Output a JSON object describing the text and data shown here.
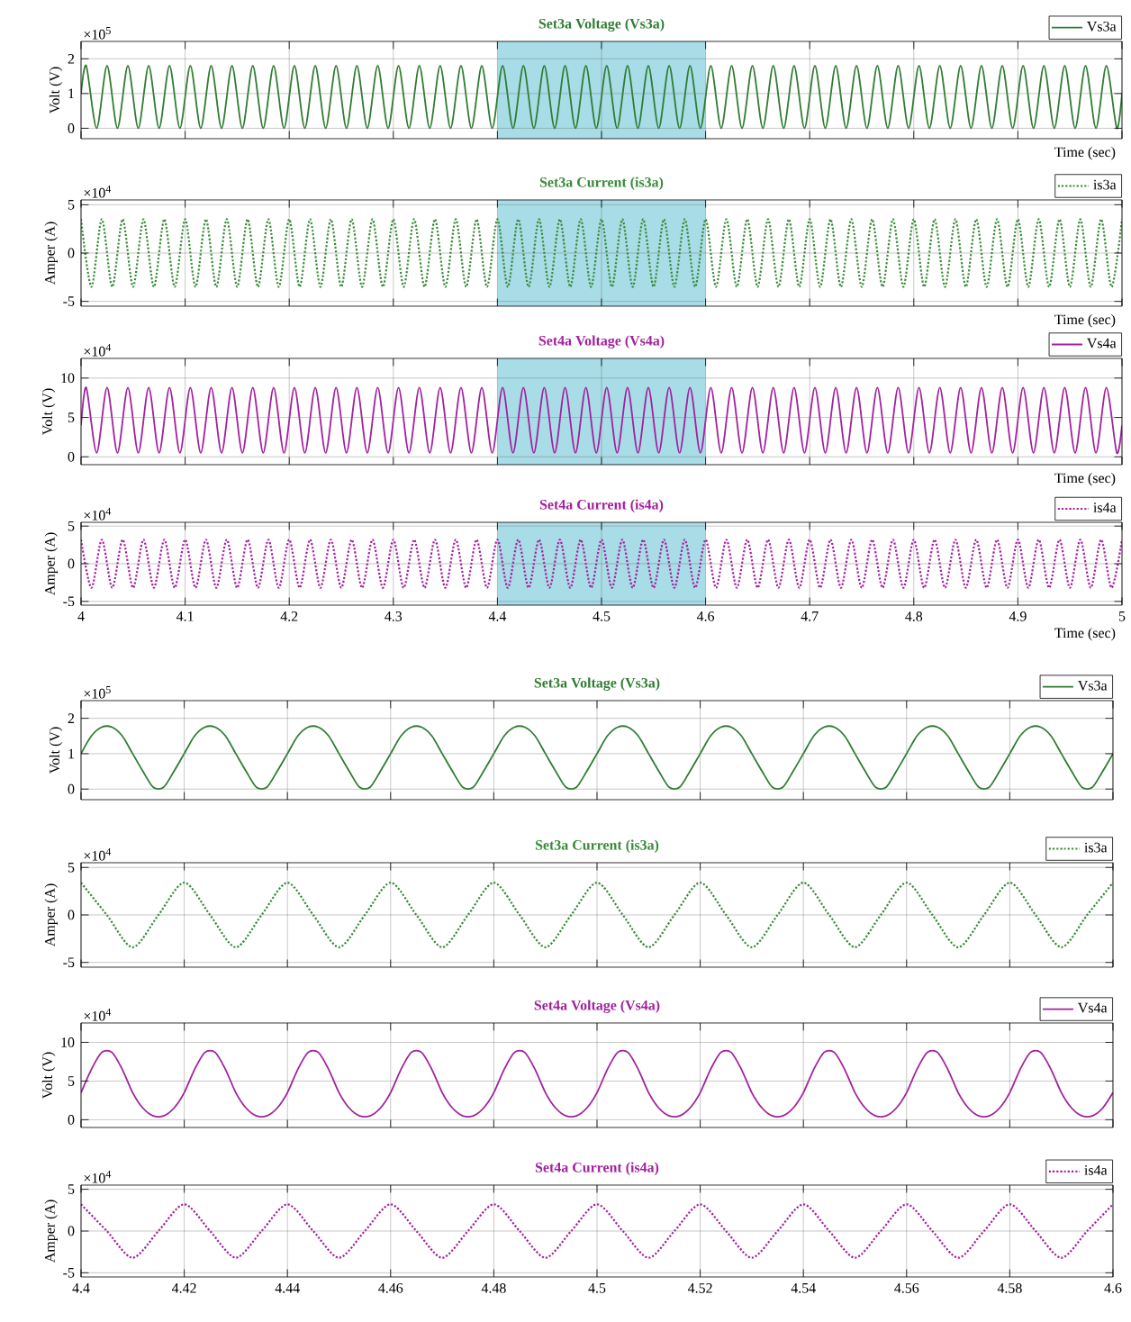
{
  "chart_data": [
    {
      "type": "line",
      "title": "Set3a Voltage (Vs3a)",
      "xlabel": "Time (sec)",
      "ylabel": "Volt (V)",
      "annotations": [
        "×10$^{5}$"
      ],
      "xlim": [
        4,
        5
      ],
      "ylim": [
        -0.3,
        2.5
      ],
      "xticks": [
        4,
        4.1,
        4.2,
        4.3,
        4.4,
        4.5,
        4.6,
        4.7,
        4.8,
        4.9,
        5
      ],
      "yticks": [
        0,
        1,
        2
      ],
      "grid": true,
      "legend": "top right",
      "line_style": "solid",
      "tick_labels": "y",
      "bands": [
        {
          "axis": "x",
          "from": 4.4,
          "to": 4.6,
          "color": "#a8dce6"
        }
      ],
      "x": [
        4,
        4.005,
        4.015,
        4.025,
        4.035,
        4.045,
        4.055,
        4.065,
        4.075,
        4.085,
        4.095,
        4.105,
        4.115,
        4.125,
        4.135,
        4.145,
        4.155,
        4.165,
        4.175,
        4.185,
        4.195,
        4.205,
        4.215,
        4.225,
        4.235,
        4.245,
        4.255,
        4.265,
        4.275,
        4.285,
        4.295,
        4.305,
        4.315,
        4.325,
        4.335,
        4.345,
        4.355,
        4.365,
        4.375,
        4.385,
        4.395,
        4.405,
        4.415,
        4.425,
        4.435,
        4.445,
        4.455,
        4.465,
        4.475,
        4.485,
        4.495,
        4.505,
        4.515,
        4.525,
        4.535,
        4.545,
        4.555,
        4.565,
        4.575,
        4.585,
        4.595,
        4.605,
        4.615,
        4.625,
        4.635,
        4.645,
        4.655,
        4.665,
        4.675,
        4.685,
        4.695,
        4.705,
        4.715,
        4.725,
        4.735,
        4.745,
        4.755,
        4.765,
        4.775,
        4.785,
        4.795,
        4.805,
        4.815,
        4.825,
        4.835,
        4.845,
        4.855,
        4.865,
        4.875,
        4.885,
        4.895,
        4.905,
        4.915,
        4.925,
        4.935,
        4.945,
        4.955,
        4.965,
        4.975,
        4.985,
        4.995,
        5
      ],
      "series": [
        {
          "name": "Vs3a",
          "color": "#2f7d32",
          "values": [
            1,
            1.8,
            0,
            1.8,
            0,
            1.8,
            0,
            1.8,
            0,
            1.8,
            0,
            1.8,
            0,
            1.8,
            0,
            1.8,
            0,
            1.8,
            0,
            1.8,
            0,
            1.8,
            0,
            1.8,
            0,
            1.8,
            0,
            1.8,
            0,
            1.8,
            0,
            1.8,
            0,
            1.8,
            0,
            1.8,
            0,
            1.8,
            0,
            1.8,
            0,
            1.8,
            0,
            1.8,
            0,
            1.8,
            0,
            1.8,
            0,
            1.8,
            0,
            1.8,
            0,
            1.8,
            0,
            1.8,
            0,
            1.8,
            0,
            1.8,
            0,
            1.8,
            0,
            1.8,
            0,
            1.8,
            0,
            1.8,
            0,
            1.8,
            0,
            1.8,
            0,
            1.8,
            0,
            1.8,
            0,
            1.8,
            0,
            1.8,
            0,
            1.8,
            0,
            1.8,
            0,
            1.8,
            0,
            1.8,
            0,
            1.8,
            0,
            1.8,
            0,
            1.8,
            0,
            1.8,
            0,
            1.8,
            0,
            1.8,
            0,
            1
          ]
        }
      ]
    },
    {
      "type": "line",
      "title": "Set3a Current (is3a)",
      "xlabel": "Time (sec)",
      "ylabel": "Amper (A)",
      "annotations": [
        "×10$^{4}$"
      ],
      "xlim": [
        4,
        5
      ],
      "ylim": [
        -5.5,
        5.5
      ],
      "xticks": [
        4,
        4.1,
        4.2,
        4.3,
        4.4,
        4.5,
        4.6,
        4.7,
        4.8,
        4.9,
        5
      ],
      "yticks": [
        -5,
        0,
        5
      ],
      "grid": true,
      "legend": "top right",
      "line_style": "dotted",
      "tick_labels": "y",
      "bands": [
        {
          "axis": "x",
          "from": 4.4,
          "to": 4.6,
          "color": "#a8dce6"
        }
      ],
      "x": [
        4,
        4.01,
        4.02,
        4.03,
        4.04,
        4.05,
        4.06,
        4.07,
        4.08,
        4.09,
        4.1,
        4.11,
        4.12,
        4.13,
        4.14,
        4.15,
        4.16,
        4.17,
        4.18,
        4.19,
        4.2,
        4.21,
        4.22,
        4.23,
        4.24,
        4.25,
        4.26,
        4.27,
        4.28,
        4.29,
        4.3,
        4.31,
        4.32,
        4.33,
        4.34,
        4.35,
        4.36,
        4.37,
        4.38,
        4.39,
        4.4,
        4.41,
        4.42,
        4.43,
        4.44,
        4.45,
        4.46,
        4.47,
        4.48,
        4.49,
        4.5,
        4.51,
        4.52,
        4.53,
        4.54,
        4.55,
        4.56,
        4.57,
        4.58,
        4.59,
        4.6,
        4.61,
        4.62,
        4.63,
        4.64,
        4.65,
        4.66,
        4.67,
        4.68,
        4.69,
        4.7,
        4.71,
        4.72,
        4.73,
        4.74,
        4.75,
        4.76,
        4.77,
        4.78,
        4.79,
        4.8,
        4.81,
        4.82,
        4.83,
        4.84,
        4.85,
        4.86,
        4.87,
        4.88,
        4.89,
        4.9,
        4.91,
        4.92,
        4.93,
        4.94,
        4.95,
        4.96,
        4.97,
        4.98,
        4.99,
        5
      ],
      "series": [
        {
          "name": "is3a",
          "color": "#3a8a3a",
          "values": [
            3.5,
            -3.5,
            3.5,
            -3.5,
            3.5,
            -3.5,
            3.5,
            -3.5,
            3.5,
            -3.5,
            3.5,
            -3.5,
            3.5,
            -3.5,
            3.5,
            -3.5,
            3.5,
            -3.5,
            3.5,
            -3.5,
            3.5,
            -3.5,
            3.5,
            -3.5,
            3.5,
            -3.5,
            3.5,
            -3.5,
            3.5,
            -3.5,
            3.5,
            -3.5,
            3.5,
            -3.5,
            3.5,
            -3.5,
            3.5,
            -3.5,
            3.5,
            -3.5,
            3.5,
            -3.5,
            3.5,
            -3.5,
            3.5,
            -3.5,
            3.5,
            -3.5,
            3.5,
            -3.5,
            3.5,
            -3.5,
            3.5,
            -3.5,
            3.5,
            -3.5,
            3.5,
            -3.5,
            3.5,
            -3.5,
            3.5,
            -3.5,
            3.5,
            -3.5,
            3.5,
            -3.5,
            3.5,
            -3.5,
            3.5,
            -3.5,
            3.5,
            -3.5,
            3.5,
            -3.5,
            3.5,
            -3.5,
            3.5,
            -3.5,
            3.5,
            -3.5,
            3.5,
            -3.5,
            3.5,
            -3.5,
            3.5,
            -3.5,
            3.5,
            -3.5,
            3.5,
            -3.5,
            3.5,
            -3.5,
            3.5,
            -3.5,
            3.5,
            -3.5,
            3.5,
            -3.5,
            3.5,
            -3.5,
            3.5
          ]
        }
      ]
    },
    {
      "type": "line",
      "title": "Set4a Voltage (Vs4a)",
      "xlabel": "Time (sec)",
      "ylabel": "Volt (V)",
      "annotations": [
        "×10$^{4}$"
      ],
      "xlim": [
        4,
        5
      ],
      "ylim": [
        -1,
        12.5
      ],
      "xticks": [
        4,
        4.1,
        4.2,
        4.3,
        4.4,
        4.5,
        4.6,
        4.7,
        4.8,
        4.9,
        5
      ],
      "yticks": [
        0,
        5,
        10
      ],
      "grid": true,
      "legend": "top right",
      "line_style": "solid",
      "tick_labels": "y",
      "bands": [
        {
          "axis": "x",
          "from": 4.4,
          "to": 4.6,
          "color": "#a8dce6"
        }
      ],
      "x": [
        4,
        4.005,
        4.015,
        4.025,
        4.035,
        4.045,
        4.055,
        4.065,
        4.075,
        4.085,
        4.095,
        4.105,
        4.115,
        4.125,
        4.135,
        4.145,
        4.155,
        4.165,
        4.175,
        4.185,
        4.195,
        4.205,
        4.215,
        4.225,
        4.235,
        4.245,
        4.255,
        4.265,
        4.275,
        4.285,
        4.295,
        4.305,
        4.315,
        4.325,
        4.335,
        4.345,
        4.355,
        4.365,
        4.375,
        4.385,
        4.395,
        4.405,
        4.415,
        4.425,
        4.435,
        4.445,
        4.455,
        4.465,
        4.475,
        4.485,
        4.495,
        4.505,
        4.515,
        4.525,
        4.535,
        4.545,
        4.555,
        4.565,
        4.575,
        4.585,
        4.595,
        4.605,
        4.615,
        4.625,
        4.635,
        4.645,
        4.655,
        4.665,
        4.675,
        4.685,
        4.695,
        4.705,
        4.715,
        4.725,
        4.735,
        4.745,
        4.755,
        4.765,
        4.775,
        4.785,
        4.795,
        4.805,
        4.815,
        4.825,
        4.835,
        4.845,
        4.855,
        4.865,
        4.875,
        4.885,
        4.895,
        4.905,
        4.915,
        4.925,
        4.935,
        4.945,
        4.955,
        4.965,
        4.975,
        4.985,
        4.995,
        5
      ],
      "series": [
        {
          "name": "Vs4a",
          "color": "#a2219f",
          "values": [
            4,
            8.8,
            0.5,
            8.8,
            0.5,
            8.8,
            0.5,
            8.8,
            0.5,
            8.8,
            0.5,
            8.8,
            0.5,
            8.8,
            0.5,
            8.8,
            0.5,
            8.8,
            0.5,
            8.8,
            0.5,
            8.8,
            0.5,
            8.8,
            0.5,
            8.8,
            0.5,
            8.8,
            0.5,
            8.8,
            0.5,
            8.8,
            0.5,
            8.8,
            0.5,
            8.8,
            0.5,
            8.8,
            0.5,
            8.8,
            0.5,
            8.8,
            0.5,
            8.8,
            0.5,
            8.8,
            0.5,
            8.8,
            0.5,
            8.8,
            0.5,
            8.8,
            0.5,
            8.8,
            0.5,
            8.8,
            0.5,
            8.8,
            0.5,
            8.8,
            0.5,
            8.8,
            0.5,
            8.8,
            0.5,
            8.8,
            0.5,
            8.8,
            0.5,
            8.8,
            0.5,
            8.8,
            0.5,
            8.8,
            0.5,
            8.8,
            0.5,
            8.8,
            0.5,
            8.8,
            0.5,
            8.8,
            0.5,
            8.8,
            0.5,
            8.8,
            0.5,
            8.8,
            0.5,
            8.8,
            0.5,
            8.8,
            0.5,
            8.8,
            0.5,
            8.8,
            0.5,
            8.8,
            0.5,
            8.8,
            0.5,
            4
          ]
        }
      ]
    },
    {
      "type": "line",
      "title": "Set4a Current (is4a)",
      "xlabel": "Time (sec)",
      "ylabel": "Amper (A)",
      "annotations": [
        "×10$^{4}$"
      ],
      "xlim": [
        4,
        5
      ],
      "ylim": [
        -5.5,
        5.5
      ],
      "xticks": [
        4,
        4.1,
        4.2,
        4.3,
        4.4,
        4.5,
        4.6,
        4.7,
        4.8,
        4.9,
        5
      ],
      "yticks": [
        -5,
        0,
        5
      ],
      "grid": true,
      "legend": "top right",
      "line_style": "dotted",
      "bands": [
        {
          "axis": "x",
          "from": 4.4,
          "to": 4.6,
          "color": "#a8dce6"
        }
      ],
      "x": [
        4,
        4.01,
        4.02,
        4.03,
        4.04,
        4.05,
        4.06,
        4.07,
        4.08,
        4.09,
        4.1,
        4.11,
        4.12,
        4.13,
        4.14,
        4.15,
        4.16,
        4.17,
        4.18,
        4.19,
        4.2,
        4.21,
        4.22,
        4.23,
        4.24,
        4.25,
        4.26,
        4.27,
        4.28,
        4.29,
        4.3,
        4.31,
        4.32,
        4.33,
        4.34,
        4.35,
        4.36,
        4.37,
        4.38,
        4.39,
        4.4,
        4.41,
        4.42,
        4.43,
        4.44,
        4.45,
        4.46,
        4.47,
        4.48,
        4.49,
        4.5,
        4.51,
        4.52,
        4.53,
        4.54,
        4.55,
        4.56,
        4.57,
        4.58,
        4.59,
        4.6,
        4.61,
        4.62,
        4.63,
        4.64,
        4.65,
        4.66,
        4.67,
        4.68,
        4.69,
        4.7,
        4.71,
        4.72,
        4.73,
        4.74,
        4.75,
        4.76,
        4.77,
        4.78,
        4.79,
        4.8,
        4.81,
        4.82,
        4.83,
        4.84,
        4.85,
        4.86,
        4.87,
        4.88,
        4.89,
        4.9,
        4.91,
        4.92,
        4.93,
        4.94,
        4.95,
        4.96,
        4.97,
        4.98,
        4.99,
        5
      ],
      "series": [
        {
          "name": "is4a",
          "color": "#a2219f",
          "values": [
            3.2,
            -3.2,
            3.2,
            -3.2,
            3.2,
            -3.2,
            3.2,
            -3.2,
            3.2,
            -3.2,
            3.2,
            -3.2,
            3.2,
            -3.2,
            3.2,
            -3.2,
            3.2,
            -3.2,
            3.2,
            -3.2,
            3.2,
            -3.2,
            3.2,
            -3.2,
            3.2,
            -3.2,
            3.2,
            -3.2,
            3.2,
            -3.2,
            3.2,
            -3.2,
            3.2,
            -3.2,
            3.2,
            -3.2,
            3.2,
            -3.2,
            3.2,
            -3.2,
            3.2,
            -3.2,
            3.2,
            -3.2,
            3.2,
            -3.2,
            3.2,
            -3.2,
            3.2,
            -3.2,
            3.2,
            -3.2,
            3.2,
            -3.2,
            3.2,
            -3.2,
            3.2,
            -3.2,
            3.2,
            -3.2,
            3.2,
            -3.2,
            3.2,
            -3.2,
            3.2,
            -3.2,
            3.2,
            -3.2,
            3.2,
            -3.2,
            3.2,
            -3.2,
            3.2,
            -3.2,
            3.2,
            -3.2,
            3.2,
            -3.2,
            3.2,
            -3.2,
            3.2,
            -3.2,
            3.2,
            -3.2,
            3.2,
            -3.2,
            3.2,
            -3.2,
            3.2,
            -3.2,
            3.2,
            -3.2,
            3.2,
            -3.2,
            3.2,
            -3.2,
            3.2,
            -3.2,
            3.2,
            -3.2,
            3.2
          ]
        }
      ]
    },
    {
      "type": "line",
      "title": "Set3a Voltage (Vs3a)",
      "ylabel": "Volt (V)",
      "annotations": [
        "×10$^{5}$"
      ],
      "xlim": [
        4.4,
        4.6
      ],
      "ylim": [
        -0.3,
        2.5
      ],
      "xticks": [
        4.4,
        4.42,
        4.44,
        4.46,
        4.48,
        4.5,
        4.52,
        4.54,
        4.56,
        4.58,
        4.6
      ],
      "yticks": [
        0,
        1,
        2
      ],
      "grid": true,
      "legend": "top right",
      "line_style": "solid",
      "tick_labels": "y",
      "x": [
        4.4,
        4.402,
        4.404,
        4.406,
        4.408,
        4.41,
        4.412,
        4.414,
        4.416,
        4.418,
        4.42,
        4.422,
        4.424,
        4.426,
        4.428,
        4.43,
        4.432,
        4.434,
        4.436,
        4.438,
        4.44,
        4.442,
        4.444,
        4.446,
        4.448,
        4.45,
        4.452,
        4.454,
        4.456,
        4.458,
        4.46,
        4.462,
        4.464,
        4.466,
        4.468,
        4.47,
        4.472,
        4.474,
        4.476,
        4.478,
        4.48,
        4.482,
        4.484,
        4.486,
        4.488,
        4.49,
        4.492,
        4.494,
        4.496,
        4.498,
        4.5,
        4.502,
        4.504,
        4.506,
        4.508,
        4.51,
        4.512,
        4.514,
        4.516,
        4.518,
        4.52,
        4.522,
        4.524,
        4.526,
        4.528,
        4.53,
        4.532,
        4.534,
        4.536,
        4.538,
        4.54,
        4.542,
        4.544,
        4.546,
        4.548,
        4.55,
        4.552,
        4.554,
        4.556,
        4.558,
        4.56,
        4.562,
        4.564,
        4.566,
        4.568,
        4.57,
        4.572,
        4.574,
        4.576,
        4.578,
        4.58,
        4.582,
        4.584,
        4.586,
        4.588,
        4.59,
        4.592,
        4.594,
        4.596,
        4.598,
        4.6
      ],
      "series": [
        {
          "name": "Vs3a",
          "color": "#2f7d32",
          "values": [
            1,
            1.5,
            1.75,
            1.75,
            1.5,
            1,
            0.5,
            0.05,
            0.05,
            0.5,
            1,
            1.5,
            1.75,
            1.75,
            1.5,
            1,
            0.5,
            0.05,
            0.05,
            0.5,
            1,
            1.5,
            1.75,
            1.75,
            1.5,
            1,
            0.5,
            0.05,
            0.05,
            0.5,
            1,
            1.5,
            1.75,
            1.75,
            1.5,
            1,
            0.5,
            0.05,
            0.05,
            0.5,
            1,
            1.5,
            1.75,
            1.75,
            1.5,
            1,
            0.5,
            0.05,
            0.05,
            0.5,
            1,
            1.5,
            1.75,
            1.75,
            1.5,
            1,
            0.5,
            0.05,
            0.05,
            0.5,
            1,
            1.5,
            1.75,
            1.75,
            1.5,
            1,
            0.5,
            0.05,
            0.05,
            0.5,
            1,
            1.5,
            1.75,
            1.75,
            1.5,
            1,
            0.5,
            0.05,
            0.05,
            0.5,
            1,
            1.5,
            1.75,
            1.75,
            1.5,
            1,
            0.5,
            0.05,
            0.05,
            0.5,
            1,
            1.5,
            1.75,
            1.75,
            1.5,
            1,
            0.5,
            0.05,
            0.05,
            0.5,
            1
          ]
        }
      ]
    },
    {
      "type": "line",
      "title": "Set3a Current (is3a)",
      "ylabel": "Amper (A)",
      "annotations": [
        "×10$^{4}$"
      ],
      "xlim": [
        4.4,
        4.6
      ],
      "ylim": [
        -5.5,
        5.5
      ],
      "xticks": [
        4.4,
        4.42,
        4.44,
        4.46,
        4.48,
        4.5,
        4.52,
        4.54,
        4.56,
        4.58,
        4.6
      ],
      "yticks": [
        -5,
        0,
        5
      ],
      "grid": true,
      "legend": "top right",
      "line_style": "dotted",
      "tick_labels": "y",
      "x": [
        4.4,
        4.405,
        4.41,
        4.415,
        4.42,
        4.425,
        4.43,
        4.435,
        4.44,
        4.445,
        4.45,
        4.455,
        4.46,
        4.465,
        4.47,
        4.475,
        4.48,
        4.485,
        4.49,
        4.495,
        4.5,
        4.505,
        4.51,
        4.515,
        4.52,
        4.525,
        4.53,
        4.535,
        4.54,
        4.545,
        4.55,
        4.555,
        4.56,
        4.565,
        4.57,
        4.575,
        4.58,
        4.585,
        4.59,
        4.595,
        4.6
      ],
      "series": [
        {
          "name": "is3a",
          "color": "#3a8a3a",
          "values": [
            3.4,
            0,
            -3.4,
            0,
            3.4,
            0,
            -3.4,
            0,
            3.4,
            0,
            -3.4,
            0,
            3.4,
            0,
            -3.4,
            0,
            3.4,
            0,
            -3.4,
            0,
            3.4,
            0,
            -3.4,
            0,
            3.4,
            0,
            -3.4,
            0,
            3.4,
            0,
            -3.4,
            0,
            3.4,
            0,
            -3.4,
            0,
            3.4,
            0,
            -3.4,
            0,
            3.4
          ]
        }
      ]
    },
    {
      "type": "line",
      "title": "Set4a Voltage (Vs4a)",
      "ylabel": "Volt (V)",
      "annotations": [
        "×10$^{4}$"
      ],
      "xlim": [
        4.4,
        4.6
      ],
      "ylim": [
        -1,
        12.5
      ],
      "xticks": [
        4.4,
        4.42,
        4.44,
        4.46,
        4.48,
        4.5,
        4.52,
        4.54,
        4.56,
        4.58,
        4.6
      ],
      "yticks": [
        0,
        5,
        10
      ],
      "grid": true,
      "legend": "top right",
      "line_style": "solid",
      "tick_labels": "y",
      "x": [
        4.4,
        4.402,
        4.404,
        4.406,
        4.408,
        4.41,
        4.412,
        4.414,
        4.416,
        4.418,
        4.42,
        4.422,
        4.424,
        4.426,
        4.428,
        4.43,
        4.432,
        4.434,
        4.436,
        4.438,
        4.44,
        4.442,
        4.444,
        4.446,
        4.448,
        4.45,
        4.452,
        4.454,
        4.456,
        4.458,
        4.46,
        4.462,
        4.464,
        4.466,
        4.468,
        4.47,
        4.472,
        4.474,
        4.476,
        4.478,
        4.48,
        4.482,
        4.484,
        4.486,
        4.488,
        4.49,
        4.492,
        4.494,
        4.496,
        4.498,
        4.5,
        4.502,
        4.504,
        4.506,
        4.508,
        4.51,
        4.512,
        4.514,
        4.516,
        4.518,
        4.52,
        4.522,
        4.524,
        4.526,
        4.528,
        4.53,
        4.532,
        4.534,
        4.536,
        4.538,
        4.54,
        4.542,
        4.544,
        4.546,
        4.548,
        4.55,
        4.552,
        4.554,
        4.556,
        4.558,
        4.56,
        4.562,
        4.564,
        4.566,
        4.568,
        4.57,
        4.572,
        4.574,
        4.576,
        4.578,
        4.58,
        4.582,
        4.584,
        4.586,
        4.588,
        4.59,
        4.592,
        4.594,
        4.596,
        4.598,
        4.6
      ],
      "series": [
        {
          "name": "Vs4a",
          "color": "#a2219f",
          "values": [
            3.5,
            6.5,
            8.7,
            8.7,
            6.5,
            3.5,
            1.5,
            0.5,
            0.5,
            1.5,
            3.5,
            6.5,
            8.7,
            8.7,
            6.5,
            3.5,
            1.5,
            0.5,
            0.5,
            1.5,
            3.5,
            6.5,
            8.7,
            8.7,
            6.5,
            3.5,
            1.5,
            0.5,
            0.5,
            1.5,
            3.5,
            6.5,
            8.7,
            8.7,
            6.5,
            3.5,
            1.5,
            0.5,
            0.5,
            1.5,
            3.5,
            6.5,
            8.7,
            8.7,
            6.5,
            3.5,
            1.5,
            0.5,
            0.5,
            1.5,
            3.5,
            6.5,
            8.7,
            8.7,
            6.5,
            3.5,
            1.5,
            0.5,
            0.5,
            1.5,
            3.5,
            6.5,
            8.7,
            8.7,
            6.5,
            3.5,
            1.5,
            0.5,
            0.5,
            1.5,
            3.5,
            6.5,
            8.7,
            8.7,
            6.5,
            3.5,
            1.5,
            0.5,
            0.5,
            1.5,
            3.5,
            6.5,
            8.7,
            8.7,
            6.5,
            3.5,
            1.5,
            0.5,
            0.5,
            1.5,
            3.5,
            6.5,
            8.7,
            8.7,
            6.5,
            3.5,
            1.5,
            0.5,
            0.5,
            1.5,
            3.5
          ]
        }
      ]
    },
    {
      "type": "line",
      "title": "Set4a Current (is4a)",
      "ylabel": "Amper (A)",
      "annotations": [
        "×10$^{4}$"
      ],
      "xlim": [
        4.4,
        4.6
      ],
      "ylim": [
        -5.5,
        5.5
      ],
      "xticks": [
        4.4,
        4.42,
        4.44,
        4.46,
        4.48,
        4.5,
        4.52,
        4.54,
        4.56,
        4.58,
        4.6
      ],
      "yticks": [
        -5,
        0,
        5
      ],
      "grid": true,
      "legend": "top right",
      "line_style": "dotted",
      "x": [
        4.4,
        4.405,
        4.41,
        4.415,
        4.42,
        4.425,
        4.43,
        4.435,
        4.44,
        4.445,
        4.45,
        4.455,
        4.46,
        4.465,
        4.47,
        4.475,
        4.48,
        4.485,
        4.49,
        4.495,
        4.5,
        4.505,
        4.51,
        4.515,
        4.52,
        4.525,
        4.53,
        4.535,
        4.54,
        4.545,
        4.55,
        4.555,
        4.56,
        4.565,
        4.57,
        4.575,
        4.58,
        4.585,
        4.59,
        4.595,
        4.6
      ],
      "series": [
        {
          "name": "is4a",
          "color": "#a2219f",
          "values": [
            3.2,
            0,
            -3.2,
            0,
            3.2,
            0,
            -3.2,
            0,
            3.2,
            0,
            -3.2,
            0,
            3.2,
            0,
            -3.2,
            0,
            3.2,
            0,
            -3.2,
            0,
            3.2,
            0,
            -3.2,
            0,
            3.2,
            0,
            -3.2,
            0,
            3.2,
            0,
            -3.2,
            0,
            3.2,
            0,
            -3.2,
            0,
            3.2,
            0,
            -3.2,
            0,
            3.2
          ]
        }
      ]
    }
  ]
}
